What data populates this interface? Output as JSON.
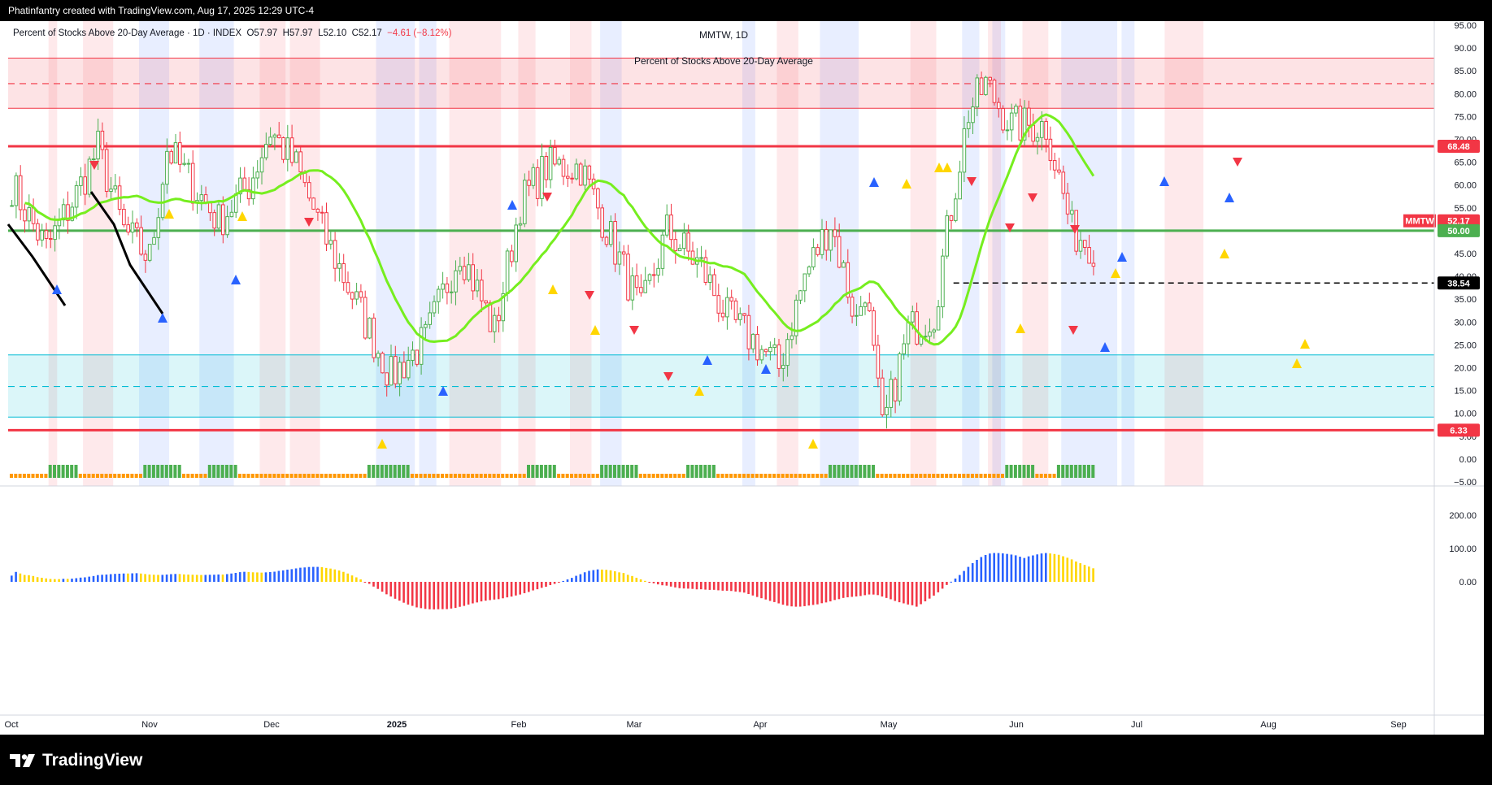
{
  "header": {
    "credit": "Phatinfantry created with TradingView.com, Aug 17, 2025 12:29 UTC-4"
  },
  "legend": {
    "name": "Percent of Stocks Above 20-Day Average",
    "interval": "1D",
    "exchange": "INDEX",
    "open": "O57.97",
    "high": "H57.97",
    "low": "L52.10",
    "close": "C52.17",
    "change": "−4.61 (−8.12%)"
  },
  "title": {
    "symbol": "MMTW, 1D",
    "subtitle": "Percent of Stocks Above 20-Day Average"
  },
  "footer": {
    "brand": "TradingView"
  },
  "colors": {
    "up": "#4caf50",
    "down": "#f23645",
    "ma": "#76ee1f",
    "oscBlue": "#2962ff",
    "oscRed": "#f23645",
    "oscYellow": "#ffd600",
    "hline": "#f23645",
    "mid": "#4caf50"
  },
  "chart_data": {
    "type": "candlestick",
    "symbol": "MMTW",
    "x_axis_labels": [
      "Oct",
      "Nov",
      "Dec",
      "2025",
      "Feb",
      "Mar",
      "Apr",
      "May",
      "Jun",
      "Jul",
      "Aug",
      "Sep"
    ],
    "y_axis": {
      "min": -5,
      "max": 95,
      "step": 5,
      "ticks": [
        "95.00",
        "90.00",
        "85.00",
        "80.00",
        "75.00",
        "70.00",
        "65.00",
        "60.00",
        "55.00",
        "50.00",
        "45.00",
        "40.00",
        "35.00",
        "30.00",
        "25.00",
        "20.00",
        "15.00",
        "10.00",
        "5.00",
        "0.00",
        "−5.00"
      ]
    },
    "price_tags": [
      {
        "label": "68.48",
        "value": 68.48,
        "color": "#f23645"
      },
      {
        "label": "MMTW",
        "value": 52.17,
        "color": "#f23645"
      },
      {
        "label": "52.17",
        "value": 52.17,
        "color": "#f23645"
      },
      {
        "label": "50.00",
        "value": 50.0,
        "color": "#4caf50"
      },
      {
        "label": "38.54",
        "value": 38.54,
        "color": "#000000"
      },
      {
        "label": "6.33",
        "value": 6.33,
        "color": "#f23645"
      }
    ],
    "horizontal_lines": [
      {
        "value": 68.48,
        "style": "solid",
        "color": "#f23645"
      },
      {
        "value": 50.0,
        "style": "solid",
        "color": "#4caf50"
      },
      {
        "value": 6.33,
        "style": "solid",
        "color": "#f23645"
      },
      {
        "value": 38.54,
        "style": "dashed",
        "color": "#000000"
      }
    ],
    "zones": [
      {
        "from": 76.8,
        "to": 87.8,
        "mid": 82.2,
        "color": "#f23645"
      },
      {
        "from": 9.2,
        "to": 22.8,
        "mid": 15.9,
        "color": "#00bcd4"
      }
    ],
    "oscillator": {
      "y_ticks": [
        "200.00",
        "100.00",
        "0.00"
      ],
      "y_min": -60,
      "y_max": 260
    }
  }
}
